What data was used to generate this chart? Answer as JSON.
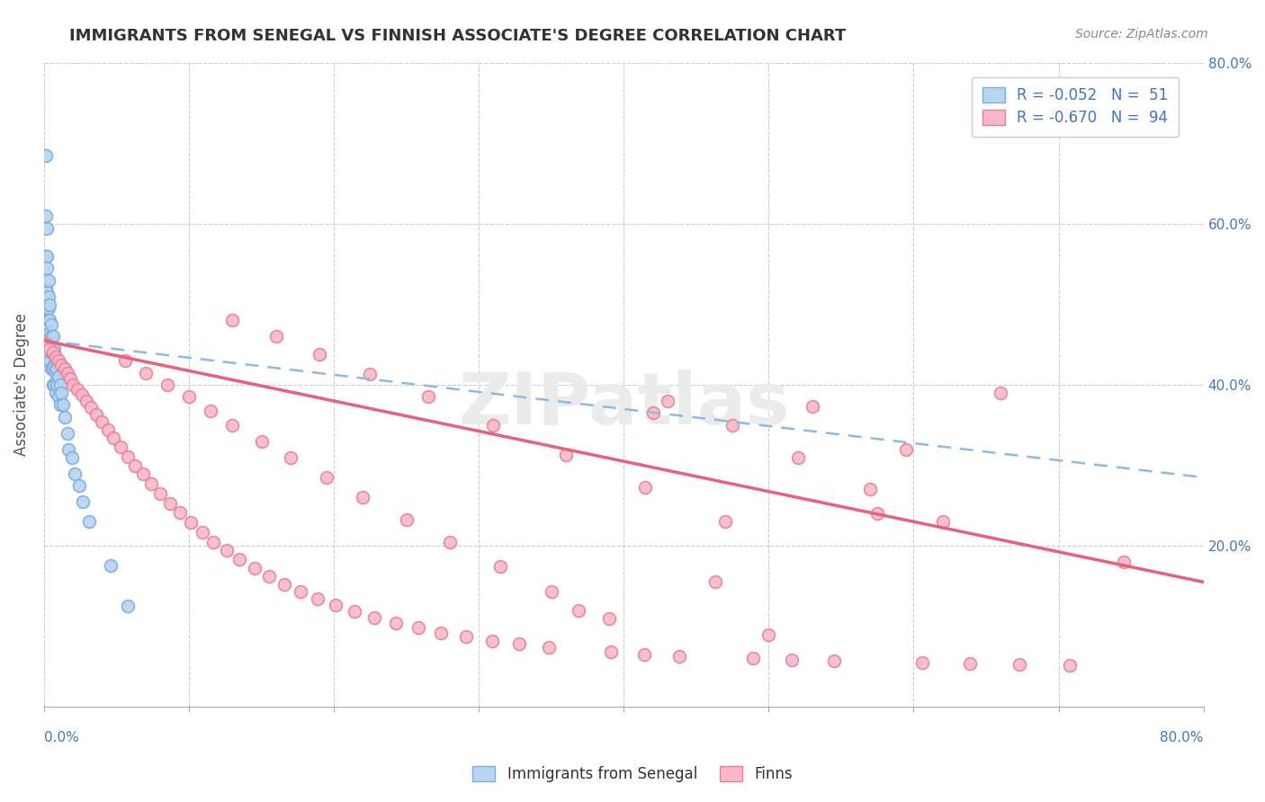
{
  "title": "IMMIGRANTS FROM SENEGAL VS FINNISH ASSOCIATE'S DEGREE CORRELATION CHART",
  "source": "Source: ZipAtlas.com",
  "ylabel": "Associate's Degree",
  "legend_entry1": "R = -0.052   N =  51",
  "legend_entry2": "R = -0.670   N =  94",
  "legend_label1": "Immigrants from Senegal",
  "legend_label2": "Finns",
  "R1": -0.052,
  "N1": 51,
  "R2": -0.67,
  "N2": 94,
  "color_blue_fill": "#b8d4f0",
  "color_blue_edge": "#7aaee0",
  "color_pink_fill": "#f8b8c8",
  "color_pink_edge": "#e88098",
  "color_blue_line": "#90b8e0",
  "color_pink_line": "#e8607a",
  "color_blue_text": "#4472c4",
  "xlim": [
    0,
    0.8
  ],
  "ylim": [
    0,
    0.8
  ],
  "blue_trend_x": [
    0,
    0.8
  ],
  "blue_trend_y": [
    0.455,
    0.285
  ],
  "pink_trend_x": [
    0,
    0.8
  ],
  "pink_trend_y": [
    0.455,
    0.155
  ],
  "blue_x": [
    0.001,
    0.001,
    0.001,
    0.001,
    0.002,
    0.002,
    0.002,
    0.002,
    0.002,
    0.003,
    0.003,
    0.003,
    0.003,
    0.003,
    0.004,
    0.004,
    0.004,
    0.004,
    0.004,
    0.005,
    0.005,
    0.005,
    0.005,
    0.006,
    0.006,
    0.006,
    0.006,
    0.007,
    0.007,
    0.007,
    0.008,
    0.008,
    0.008,
    0.009,
    0.009,
    0.01,
    0.01,
    0.011,
    0.011,
    0.012,
    0.013,
    0.014,
    0.016,
    0.017,
    0.019,
    0.021,
    0.024,
    0.027,
    0.031,
    0.046,
    0.058
  ],
  "blue_y": [
    0.685,
    0.61,
    0.56,
    0.52,
    0.595,
    0.56,
    0.545,
    0.515,
    0.495,
    0.53,
    0.51,
    0.495,
    0.48,
    0.46,
    0.5,
    0.48,
    0.465,
    0.45,
    0.43,
    0.475,
    0.46,
    0.44,
    0.42,
    0.46,
    0.445,
    0.42,
    0.4,
    0.445,
    0.425,
    0.4,
    0.43,
    0.415,
    0.39,
    0.42,
    0.4,
    0.41,
    0.385,
    0.4,
    0.375,
    0.39,
    0.375,
    0.36,
    0.34,
    0.32,
    0.31,
    0.29,
    0.275,
    0.255,
    0.23,
    0.175,
    0.125
  ],
  "pink_x": [
    0.002,
    0.004,
    0.006,
    0.008,
    0.01,
    0.012,
    0.014,
    0.016,
    0.018,
    0.02,
    0.023,
    0.026,
    0.029,
    0.032,
    0.036,
    0.04,
    0.044,
    0.048,
    0.053,
    0.058,
    0.063,
    0.068,
    0.074,
    0.08,
    0.087,
    0.094,
    0.101,
    0.109,
    0.117,
    0.126,
    0.135,
    0.145,
    0.155,
    0.166,
    0.177,
    0.189,
    0.201,
    0.214,
    0.228,
    0.243,
    0.258,
    0.274,
    0.291,
    0.309,
    0.328,
    0.348,
    0.369,
    0.391,
    0.414,
    0.438,
    0.463,
    0.489,
    0.516,
    0.545,
    0.575,
    0.606,
    0.639,
    0.673,
    0.708,
    0.745,
    0.056,
    0.07,
    0.085,
    0.1,
    0.115,
    0.13,
    0.15,
    0.17,
    0.195,
    0.22,
    0.25,
    0.28,
    0.315,
    0.35,
    0.39,
    0.43,
    0.475,
    0.52,
    0.57,
    0.62,
    0.13,
    0.16,
    0.19,
    0.225,
    0.265,
    0.31,
    0.36,
    0.415,
    0.47,
    0.53,
    0.595,
    0.66,
    0.5,
    0.42
  ],
  "pink_y": [
    0.45,
    0.445,
    0.44,
    0.435,
    0.43,
    0.425,
    0.42,
    0.415,
    0.408,
    0.4,
    0.395,
    0.388,
    0.38,
    0.372,
    0.363,
    0.354,
    0.344,
    0.334,
    0.323,
    0.311,
    0.3,
    0.289,
    0.277,
    0.265,
    0.253,
    0.241,
    0.229,
    0.217,
    0.205,
    0.194,
    0.183,
    0.172,
    0.162,
    0.152,
    0.143,
    0.134,
    0.126,
    0.118,
    0.111,
    0.104,
    0.098,
    0.092,
    0.087,
    0.082,
    0.078,
    0.074,
    0.12,
    0.068,
    0.065,
    0.063,
    0.155,
    0.06,
    0.058,
    0.057,
    0.24,
    0.055,
    0.054,
    0.053,
    0.052,
    0.18,
    0.43,
    0.415,
    0.4,
    0.385,
    0.368,
    0.35,
    0.33,
    0.31,
    0.285,
    0.26,
    0.232,
    0.204,
    0.174,
    0.143,
    0.11,
    0.38,
    0.35,
    0.31,
    0.27,
    0.23,
    0.48,
    0.46,
    0.438,
    0.413,
    0.385,
    0.35,
    0.313,
    0.273,
    0.23,
    0.373,
    0.32,
    0.39,
    0.09,
    0.365
  ]
}
